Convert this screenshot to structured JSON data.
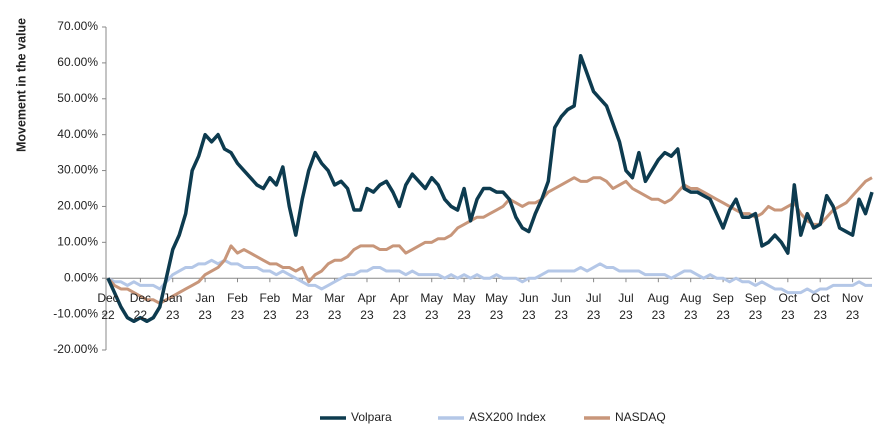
{
  "chart_data": {
    "type": "line",
    "y_label": "Movement in the value",
    "xlim": [
      0,
      118
    ],
    "xticks": [
      {
        "value": 0,
        "label": "Dec 22"
      },
      {
        "value": 5,
        "label": "Dec 22"
      },
      {
        "value": 10,
        "label": "Jan 23"
      },
      {
        "value": 15,
        "label": "Jan 23"
      },
      {
        "value": 20,
        "label": "Feb 23"
      },
      {
        "value": 25,
        "label": "Feb 23"
      },
      {
        "value": 30,
        "label": "Mar 23"
      },
      {
        "value": 35,
        "label": "Mar 23"
      },
      {
        "value": 40,
        "label": "Apr 23"
      },
      {
        "value": 45,
        "label": "Apr 23"
      },
      {
        "value": 50,
        "label": "May 23"
      },
      {
        "value": 55,
        "label": "May 23"
      },
      {
        "value": 60,
        "label": "May 23"
      },
      {
        "value": 65,
        "label": "Jun 23"
      },
      {
        "value": 70,
        "label": "Jun 23"
      },
      {
        "value": 75,
        "label": "Jul 23"
      },
      {
        "value": 80,
        "label": "Jul 23"
      },
      {
        "value": 85,
        "label": "Aug 23"
      },
      {
        "value": 90,
        "label": "Aug 23"
      },
      {
        "value": 95,
        "label": "Sep 23"
      },
      {
        "value": 100,
        "label": "Sep 23"
      },
      {
        "value": 105,
        "label": "Oct 23"
      },
      {
        "value": 110,
        "label": "Oct 23"
      },
      {
        "value": 115,
        "label": "Nov 23"
      }
    ],
    "ylim": [
      -20,
      70
    ],
    "yticks": [
      {
        "value": -20,
        "label": "-20.00%"
      },
      {
        "value": -10,
        "label": "-10.00%"
      },
      {
        "value": 0,
        "label": "0.00%"
      },
      {
        "value": 10,
        "label": "10.00%"
      },
      {
        "value": 20,
        "label": "20.00%"
      },
      {
        "value": 30,
        "label": "30.00%"
      },
      {
        "value": 40,
        "label": "40.00%"
      },
      {
        "value": 50,
        "label": "50.00%"
      },
      {
        "value": 60,
        "label": "60.00%"
      },
      {
        "value": 70,
        "label": "70.00%"
      }
    ],
    "grid": false,
    "legend": "bottom",
    "series": [
      {
        "name": "Volpara",
        "color": "#0d3b4f",
        "values": [
          0,
          -4,
          -8,
          -11,
          -12,
          -11,
          -12,
          -11,
          -8,
          0,
          8,
          12,
          18,
          30,
          34,
          40,
          38,
          40,
          36,
          35,
          32,
          30,
          28,
          26,
          25,
          28,
          26,
          31,
          20,
          12,
          22,
          30,
          35,
          32,
          30,
          26,
          27,
          25,
          19,
          19,
          25,
          24,
          26,
          27,
          24,
          20,
          26,
          29,
          27,
          25,
          28,
          26,
          22,
          20,
          19,
          25,
          16,
          22,
          25,
          25,
          24,
          24,
          22,
          17,
          14,
          13,
          18,
          22,
          27,
          42,
          45,
          47,
          48,
          62,
          57,
          52,
          50,
          48,
          43,
          38,
          30,
          28,
          35,
          27,
          30,
          33,
          35,
          34,
          36,
          25,
          24,
          24,
          23,
          22,
          18,
          14,
          19,
          22,
          17,
          17,
          18,
          9,
          10,
          12,
          10,
          7,
          26,
          12,
          18,
          14,
          15,
          23,
          20,
          14,
          13,
          12,
          22,
          18,
          24
        ]
      },
      {
        "name": "ASX200 Index",
        "color": "#b4c7e7",
        "values": [
          0,
          -1,
          -1,
          -2,
          -1,
          -2,
          -2,
          -2,
          -3,
          -1,
          1,
          2,
          3,
          3,
          4,
          4,
          5,
          4,
          5,
          4,
          4,
          3,
          3,
          3,
          2,
          2,
          1,
          2,
          1,
          0,
          -1,
          -2,
          -2,
          -3,
          -2,
          -1,
          0,
          1,
          1,
          2,
          2,
          3,
          3,
          2,
          2,
          2,
          1,
          2,
          1,
          1,
          1,
          1,
          0,
          1,
          0,
          1,
          0,
          1,
          0,
          0,
          1,
          0,
          0,
          0,
          -1,
          0,
          0,
          1,
          2,
          2,
          2,
          2,
          2,
          3,
          2,
          3,
          4,
          3,
          3,
          2,
          2,
          2,
          2,
          1,
          1,
          1,
          1,
          0,
          1,
          2,
          2,
          1,
          0,
          1,
          0,
          0,
          -1,
          0,
          -1,
          -1,
          -2,
          -1,
          -2,
          -3,
          -3,
          -4,
          -4,
          -4,
          -3,
          -4,
          -3,
          -3,
          -2,
          -2,
          -2,
          -2,
          -1,
          -2,
          -2
        ]
      },
      {
        "name": "NASDAQ",
        "color": "#c8967a",
        "values": [
          0,
          -2,
          -3,
          -3,
          -4,
          -5,
          -6,
          -6,
          -7,
          -6,
          -5,
          -4,
          -3,
          -2,
          -1,
          1,
          2,
          3,
          5,
          9,
          7,
          8,
          7,
          6,
          5,
          4,
          4,
          3,
          3,
          2,
          3,
          -1,
          1,
          2,
          4,
          5,
          5,
          6,
          8,
          9,
          9,
          9,
          8,
          8,
          9,
          9,
          7,
          8,
          9,
          10,
          10,
          11,
          11,
          12,
          14,
          15,
          16,
          17,
          17,
          18,
          19,
          20,
          22,
          21,
          20,
          21,
          21,
          22,
          24,
          25,
          26,
          27,
          28,
          27,
          27,
          28,
          28,
          27,
          25,
          26,
          27,
          25,
          24,
          23,
          22,
          22,
          21,
          22,
          24,
          26,
          25,
          25,
          24,
          23,
          22,
          21,
          20,
          19,
          18,
          18,
          17,
          18,
          20,
          19,
          19,
          20,
          21,
          18,
          16,
          15,
          15,
          17,
          19,
          20,
          21,
          23,
          25,
          27,
          28
        ]
      }
    ]
  }
}
